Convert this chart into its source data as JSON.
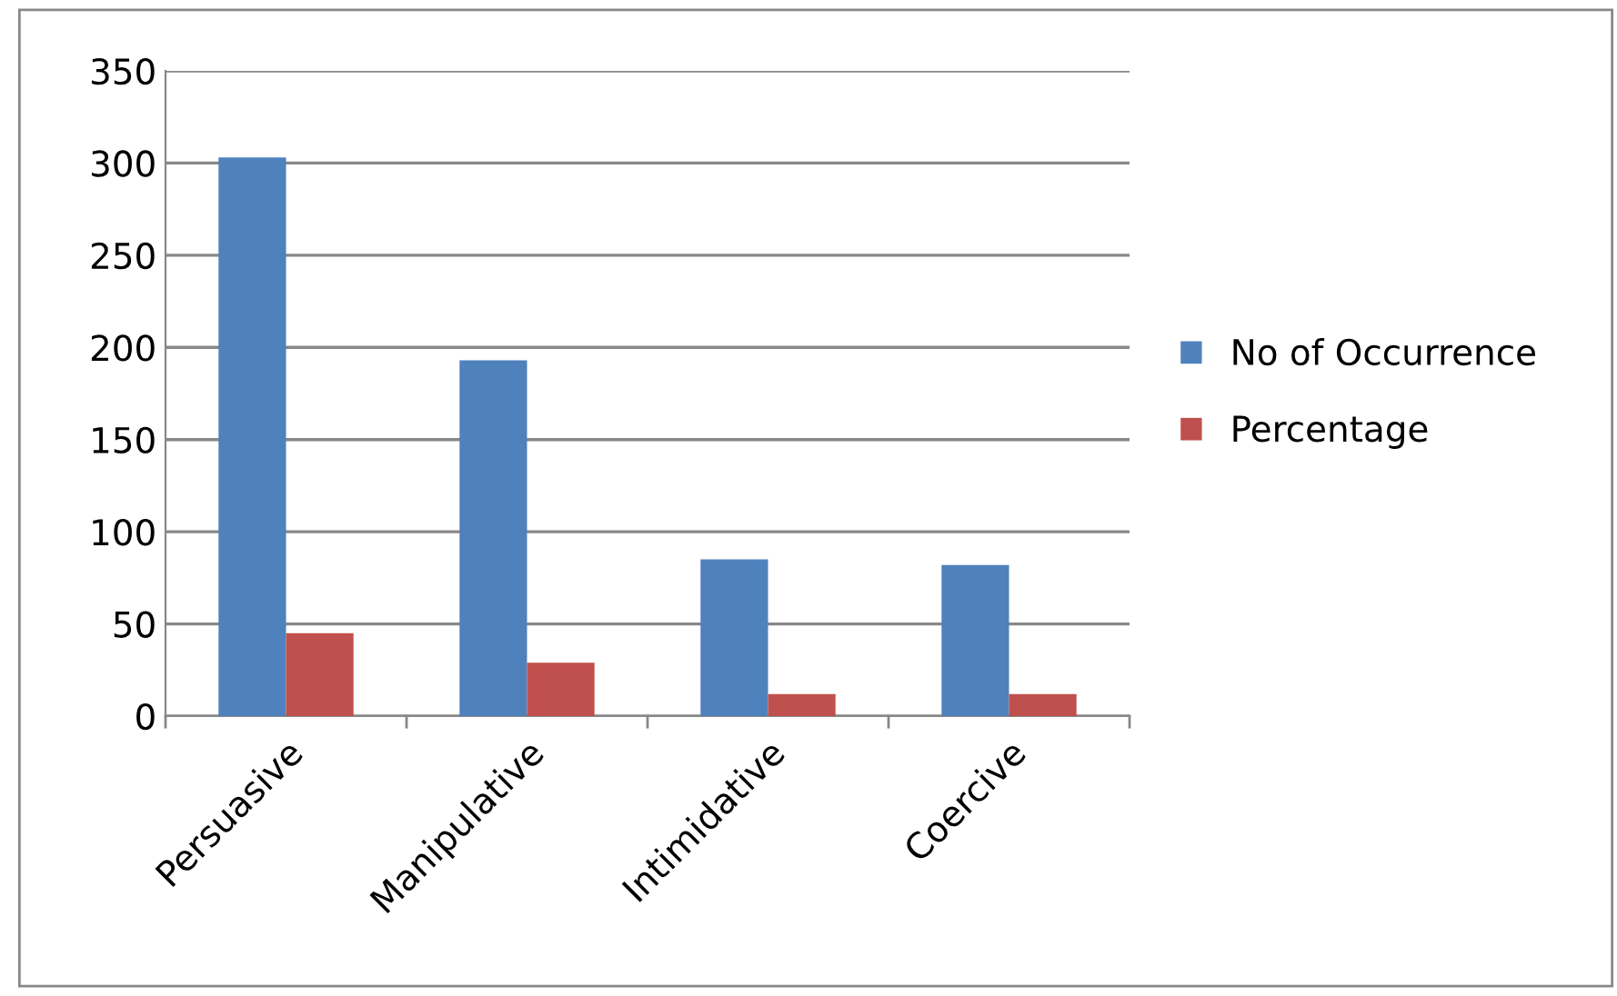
{
  "chart_data": {
    "type": "bar",
    "categories": [
      "Persuasive",
      "Manipulative",
      "Intimidative",
      "Coercive"
    ],
    "series": [
      {
        "name": "No of Occurrence",
        "color": "#4f81bd",
        "values": [
          303,
          193,
          85,
          82
        ]
      },
      {
        "name": "Percentage",
        "color": "#c0504d",
        "values": [
          45,
          29,
          12,
          12
        ]
      }
    ],
    "ylim": [
      0,
      350
    ],
    "yticks": [
      0,
      50,
      100,
      150,
      200,
      250,
      300,
      350
    ],
    "grid": "y",
    "legend": "right"
  }
}
